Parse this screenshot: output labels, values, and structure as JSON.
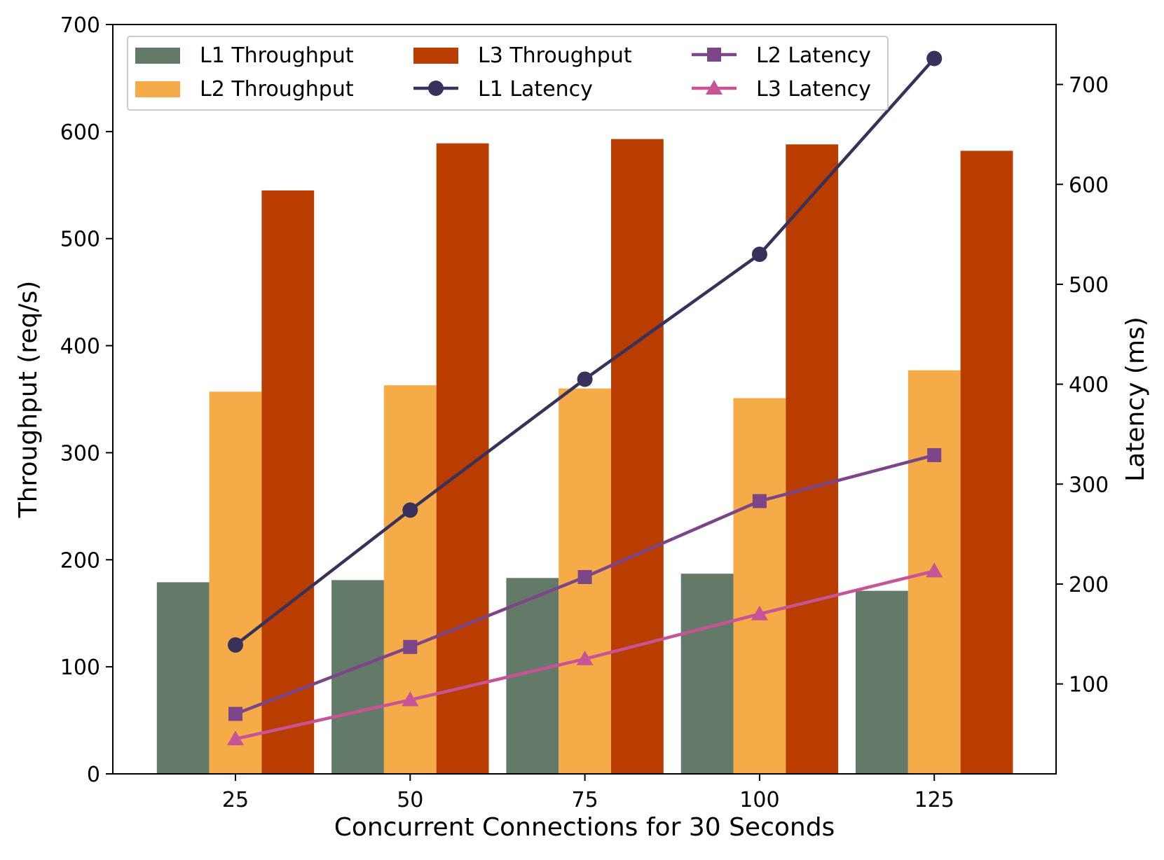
{
  "chart_data": {
    "type": "bar",
    "title": "",
    "xlabel": "Concurrent Connections for 30 Seconds",
    "ylabel": "Throughput (req/s)",
    "y2label": "Latency (ms)",
    "categories": [
      "25",
      "50",
      "75",
      "100",
      "125"
    ],
    "ylim": [
      0,
      700
    ],
    "y2lim": [
      10,
      760
    ],
    "yticks": [
      0,
      100,
      200,
      300,
      400,
      500,
      600,
      700
    ],
    "y2ticks": [
      100,
      200,
      300,
      400,
      500,
      600,
      700
    ],
    "grid": false,
    "legend_position": "top-left",
    "bar_series": [
      {
        "name": "L1 Throughput",
        "color": "#647a69",
        "values": [
          179,
          181,
          183,
          187,
          171
        ]
      },
      {
        "name": "L2 Throughput",
        "color": "#f4ab48",
        "values": [
          357,
          363,
          360,
          351,
          377
        ]
      },
      {
        "name": "L3 Throughput",
        "color": "#b93c00",
        "values": [
          545,
          589,
          593,
          588,
          582
        ]
      }
    ],
    "line_series": [
      {
        "name": "L1 Latency",
        "color": "#38315a",
        "marker": "circle",
        "axis": "right",
        "values": [
          139,
          274,
          405,
          530,
          726
        ]
      },
      {
        "name": "L2 Latency",
        "color": "#7b4588",
        "marker": "square",
        "axis": "right",
        "values": [
          70,
          137,
          207,
          283,
          329
        ]
      },
      {
        "name": "L3 Latency",
        "color": "#c65497",
        "marker": "triangle",
        "axis": "right",
        "values": [
          45,
          84,
          125,
          170,
          213
        ]
      }
    ]
  }
}
